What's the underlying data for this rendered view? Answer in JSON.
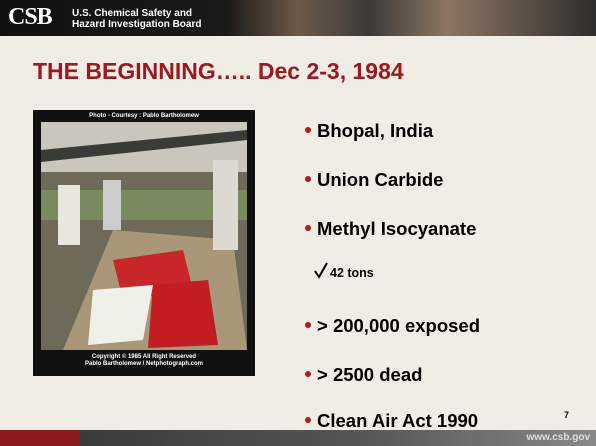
{
  "header": {
    "logo": "CSB",
    "agency_line1": "U.S. Chemical Safety and",
    "agency_line2": "Hazard Investigation Board"
  },
  "title": "THE BEGINNING….. Dec 2-3, 1984",
  "photo": {
    "credit": "Photo - Courtesy : Pablo Bartholomew",
    "copyright_line1": "Copyright © 1985 All Right Reserved",
    "copyright_line2": "Pablo Bartholomew / Netphotograph.com"
  },
  "bullets": [
    "Bhopal, India",
    "Union Carbide",
    "Methyl Isocyanate"
  ],
  "sub_bullet": "42 tons",
  "bullets_after": [
    "> 200,000 exposed",
    "> 2500 dead",
    "Clean Air Act 1990"
  ],
  "page_number": "7",
  "footer": {
    "url": "www.csb.gov"
  }
}
